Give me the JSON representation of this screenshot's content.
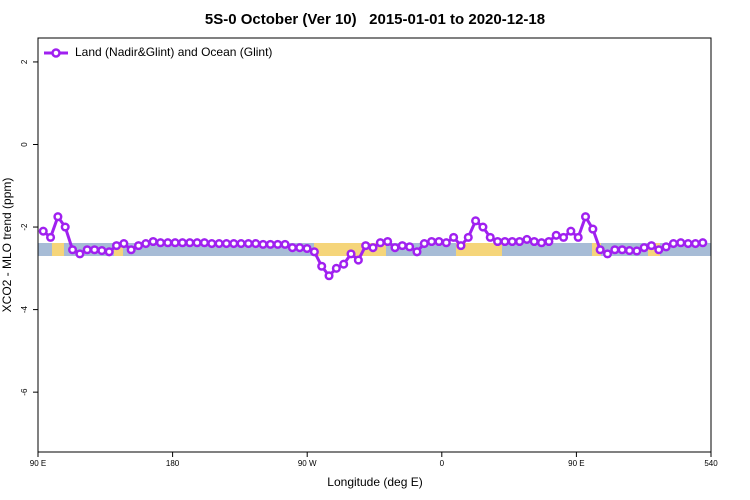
{
  "chart_data": {
    "type": "line",
    "title": "5S-0 October (Ver 10)   2015-01-01 to 2020-12-18",
    "x_label": "Longitude (deg E)",
    "y_label": "XCO2 - MLO trend (ppm)",
    "legend_position": "top-left",
    "xlim": [
      90,
      540
    ],
    "ylim": [
      -7.45,
      2.58
    ],
    "xticks": [
      {
        "value": 90,
        "label": "90 E"
      },
      180,
      {
        "value": 270,
        "label": "90 W"
      },
      {
        "value": 360,
        "label": "0"
      },
      {
        "value": 450,
        "label": "90 E"
      },
      540
    ],
    "yticks": [
      2,
      0,
      -2,
      -4,
      -6
    ],
    "x": [
      93.5,
      98.4,
      103.3,
      108.2,
      113.1,
      118,
      122.9,
      127.8,
      132.7,
      137.6,
      142.5,
      147.4,
      152.3,
      157.2,
      162.1,
      167,
      171.9,
      176.8,
      181.7,
      186.6,
      191.5,
      196.4,
      201.3,
      206.2,
      211.1,
      216,
      220.9,
      225.8,
      230.7,
      235.6,
      240.5,
      245.4,
      250.3,
      255.2,
      260.1,
      265,
      269.9,
      274.8,
      279.7,
      284.6,
      289.5,
      294.4,
      299.3,
      304.2,
      309.1,
      314,
      318.9,
      323.8,
      328.7,
      333.6,
      338.5,
      343.4,
      348.3,
      353.2,
      358.1,
      363,
      367.9,
      372.8,
      377.7,
      382.6,
      387.5,
      392.4,
      397.3,
      402.2,
      407.1,
      412,
      416.9,
      421.8,
      426.7,
      431.6,
      436.5,
      441.4,
      446.3,
      451.2,
      456.1,
      461,
      465.9,
      470.8,
      475.7,
      480.6,
      485.5,
      490.4,
      495.3,
      500.2,
      505.1,
      510,
      514.9,
      519.8,
      524.7,
      529.6,
      534.5
    ],
    "series": [
      {
        "name": "Land (Nadir&Glint) and Ocean (Glint)",
        "color": "#a020f0",
        "values": [
          -2.1,
          -2.25,
          -1.75,
          -2.0,
          -2.55,
          -2.65,
          -2.55,
          -2.55,
          -2.57,
          -2.6,
          -2.45,
          -2.4,
          -2.55,
          -2.45,
          -2.4,
          -2.35,
          -2.38,
          -2.38,
          -2.38,
          -2.38,
          -2.38,
          -2.38,
          -2.38,
          -2.4,
          -2.4,
          -2.4,
          -2.4,
          -2.4,
          -2.4,
          -2.4,
          -2.42,
          -2.42,
          -2.42,
          -2.42,
          -2.5,
          -2.5,
          -2.52,
          -2.6,
          -2.95,
          -3.18,
          -3.0,
          -2.9,
          -2.65,
          -2.8,
          -2.45,
          -2.5,
          -2.38,
          -2.35,
          -2.5,
          -2.45,
          -2.48,
          -2.6,
          -2.4,
          -2.35,
          -2.35,
          -2.38,
          -2.25,
          -2.45,
          -2.25,
          -1.85,
          -2.0,
          -2.25,
          -2.35,
          -2.35,
          -2.35,
          -2.35,
          -2.3,
          -2.35,
          -2.38,
          -2.35,
          -2.2,
          -2.25,
          -2.1,
          -2.25,
          -1.75,
          -2.05,
          -2.55,
          -2.65,
          -2.55,
          -2.55,
          -2.57,
          -2.58,
          -2.5,
          -2.45,
          -2.55,
          -2.48,
          -2.4,
          -2.38,
          -2.4,
          -2.4,
          -2.38
        ]
      }
    ]
  }
}
